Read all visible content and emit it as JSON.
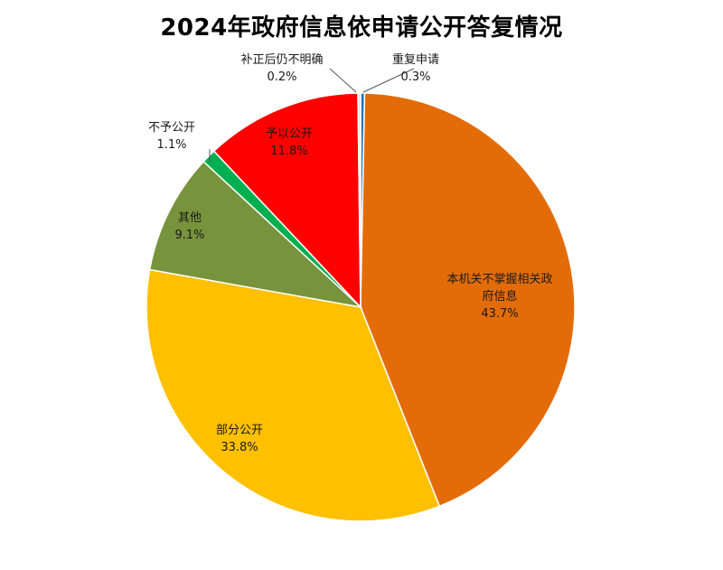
{
  "chart_data": {
    "type": "pie",
    "title": "2024年政府信息依申请公开答复情况",
    "slices": [
      {
        "name": "重复申请",
        "value": 0.3,
        "label": "0.3%",
        "color": "#1E73BE"
      },
      {
        "name": "本机关不掌握相关政府信息",
        "value": 43.7,
        "label": "43.7%",
        "color": "#E36C09"
      },
      {
        "name": "部分公开",
        "value": 33.8,
        "label": "33.8%",
        "color": "#FFC000"
      },
      {
        "name": "其他",
        "value": 9.1,
        "label": "9.1%",
        "color": "#77933C"
      },
      {
        "name": "不予公开",
        "value": 1.1,
        "label": "1.1%",
        "color": "#00B050"
      },
      {
        "name": "予以公开",
        "value": 11.8,
        "label": "11.8%",
        "color": "#FF0000"
      },
      {
        "name": "补正后仍不明确",
        "value": 0.2,
        "label": "0.2%",
        "color": "#F2DCDB"
      }
    ]
  }
}
